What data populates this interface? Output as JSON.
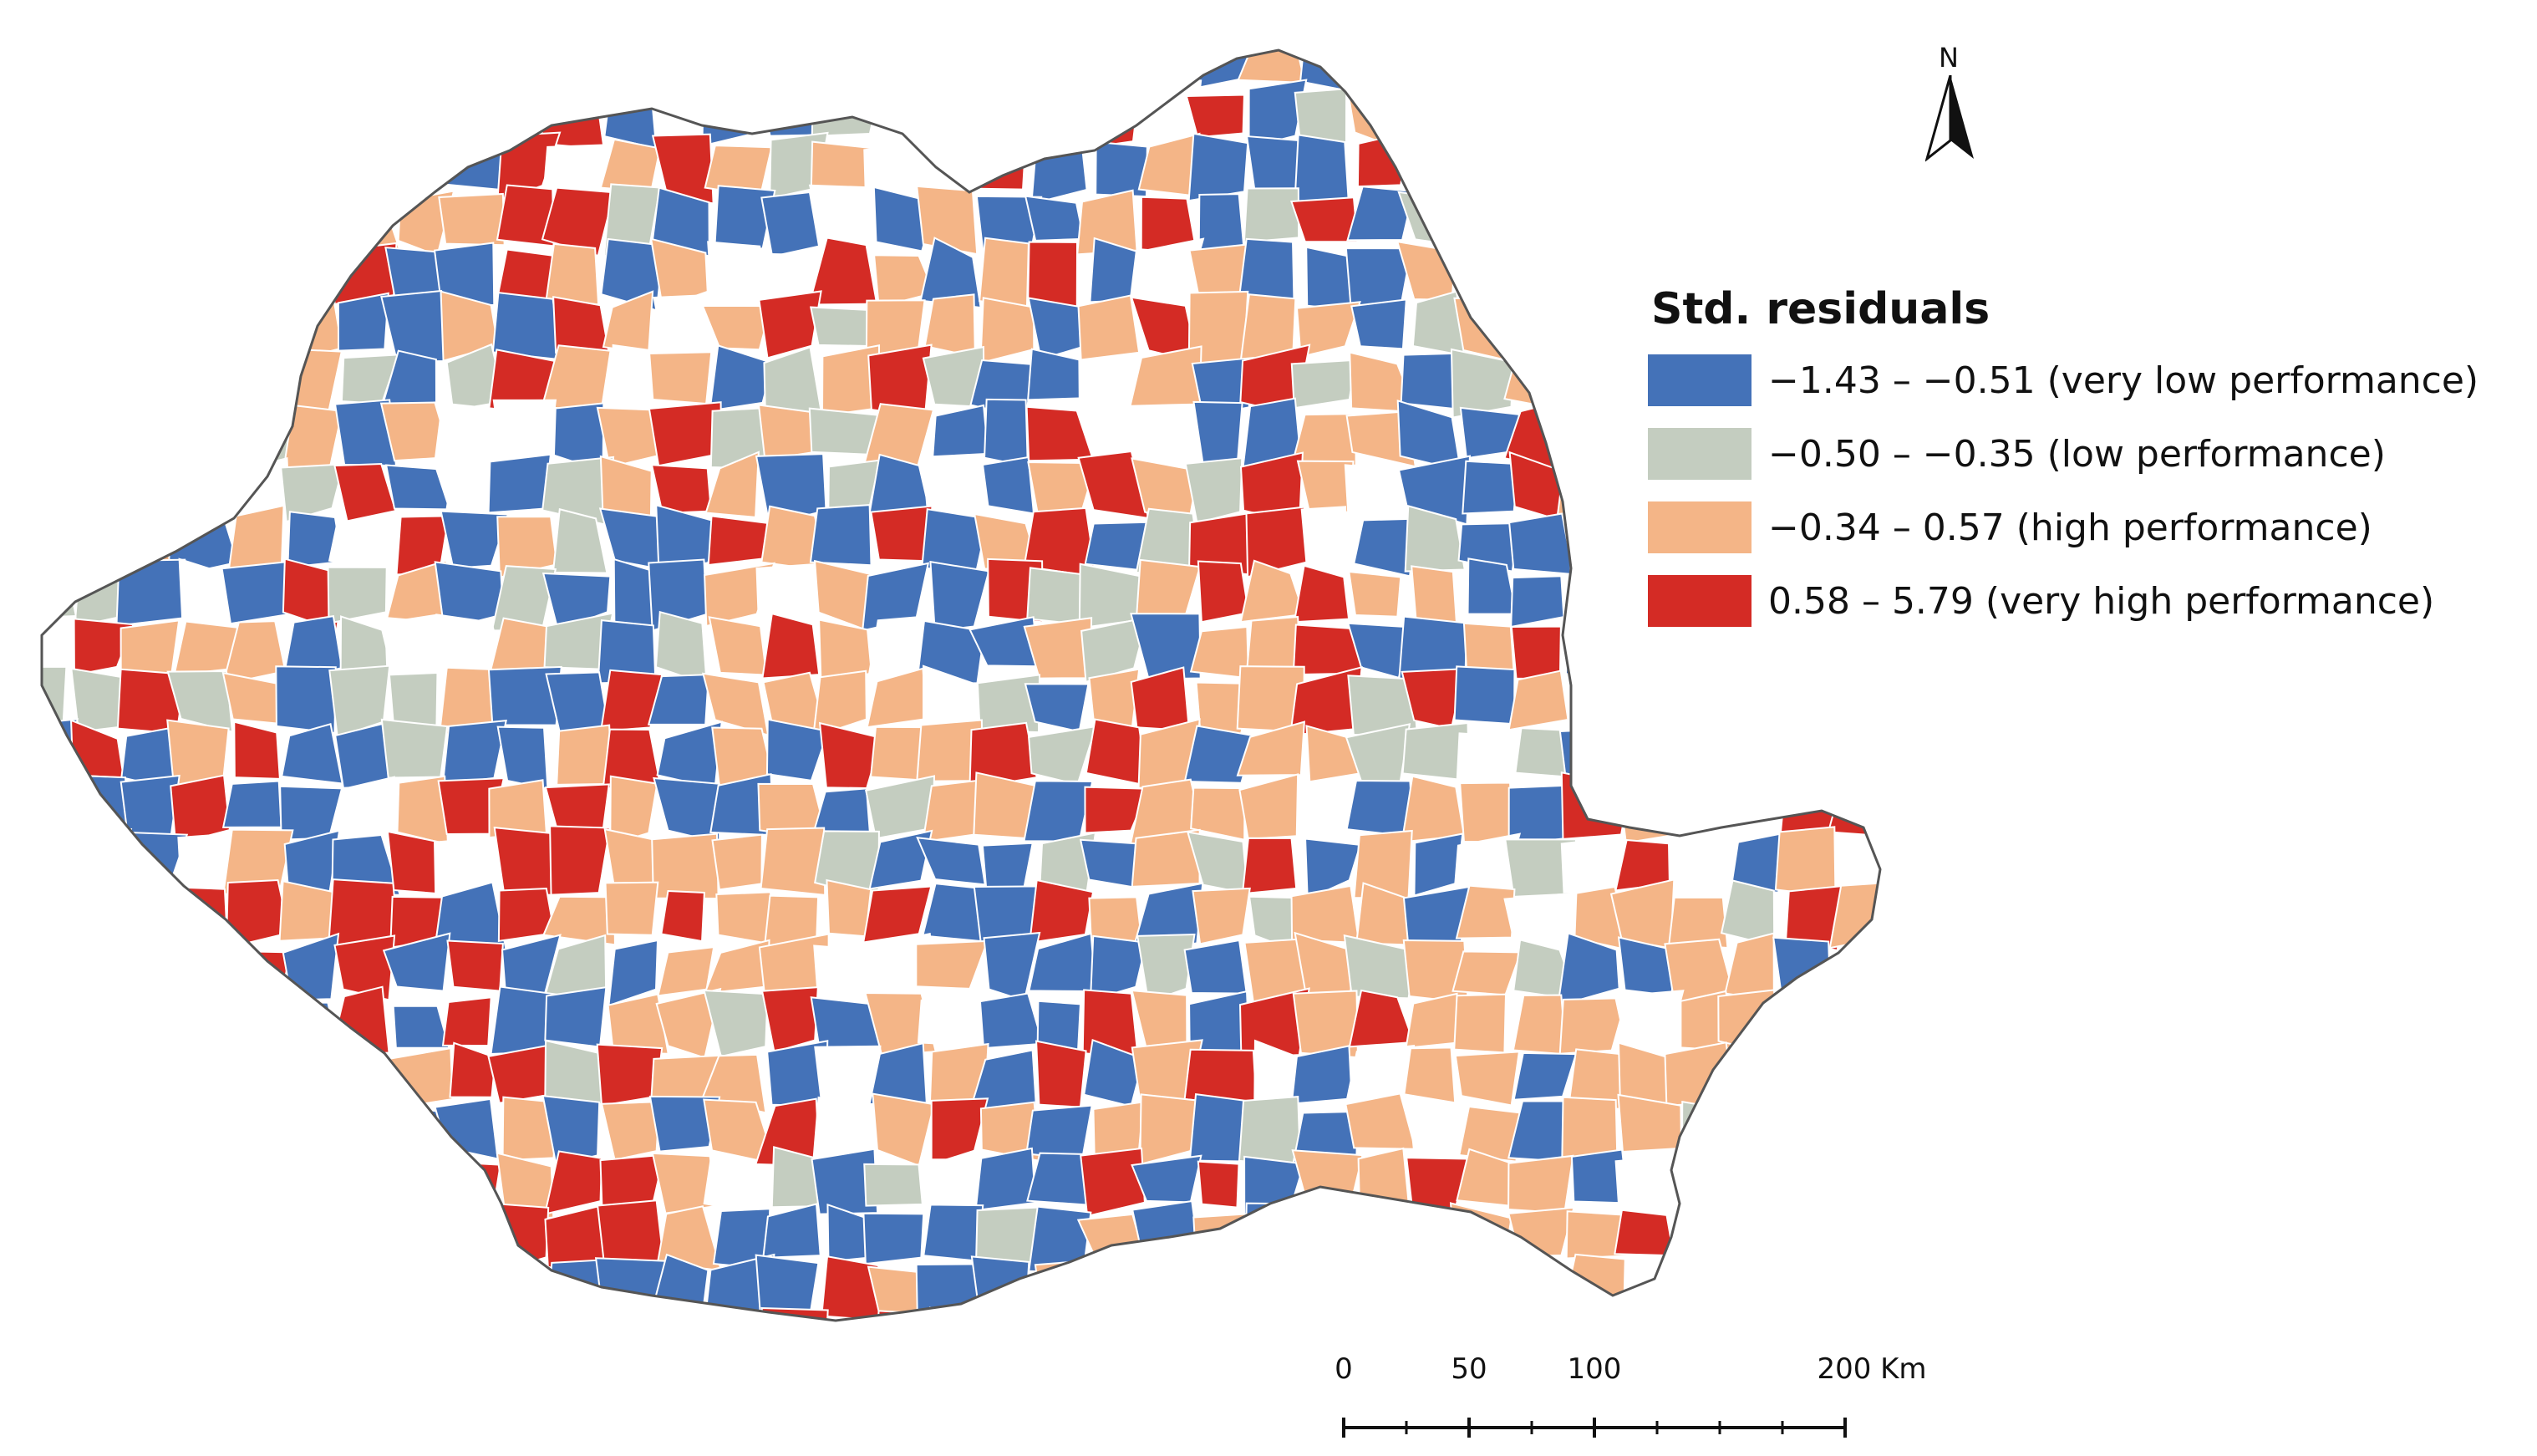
{
  "map": {
    "legend_title": "Std. residuals",
    "legend": [
      {
        "id": "very-low",
        "label": "−1.43 – −0.51 (very low performance)",
        "color": "#4472b8"
      },
      {
        "id": "low",
        "label": "−0.50 – −0.35 (low performance)",
        "color": "#c4cdc0"
      },
      {
        "id": "high",
        "label": "−0.34 – 0.57 (high performance)",
        "color": "#f4b587"
      },
      {
        "id": "very-high",
        "label": "0.58 – 5.79  (very high performance)",
        "color": "#d42b25"
      }
    ],
    "no_data_color": "#ffffff",
    "north_arrow_label": "N",
    "scale_bar": {
      "labels": [
        "0",
        "50",
        "100",
        "200 Km"
      ]
    }
  }
}
